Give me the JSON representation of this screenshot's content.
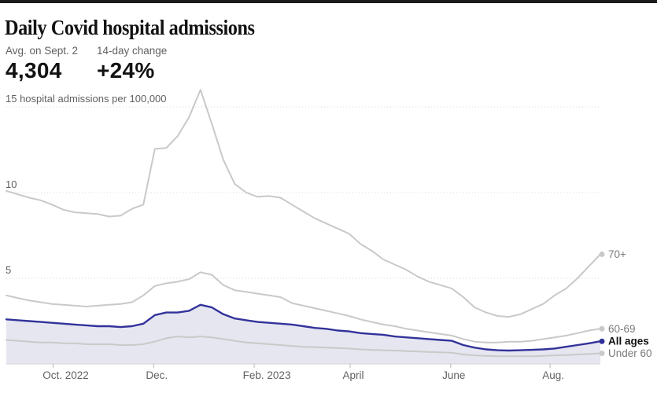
{
  "header": {
    "title": "Daily Covid hospital admissions",
    "stats": [
      {
        "label": "Avg. on Sept. 2",
        "value": "4,304"
      },
      {
        "label": "14-day change",
        "value": "+24%"
      }
    ]
  },
  "chart_data": {
    "type": "line",
    "title": "Daily Covid hospital admissions",
    "unit_note": "hospital admissions per 100,000",
    "grid": "dotted-horizontal",
    "legend_position": "line-end-labels-right",
    "ylim": [
      0,
      16.8
    ],
    "weeks_span": 52,
    "y_gridlines": [
      {
        "value": 15,
        "label": "15 hospital admissions per 100,000"
      },
      {
        "value": 10,
        "label": "10"
      },
      {
        "value": 5,
        "label": "5"
      }
    ],
    "x_ticks": [
      {
        "label": "Oct. 2022",
        "week": 4.1
      },
      {
        "label": "Dec.",
        "week": 12.9
      },
      {
        "label": "Feb. 2023",
        "week": 21.7
      },
      {
        "label": "April",
        "week": 30.1
      },
      {
        "label": "June",
        "week": 38.9
      },
      {
        "label": "Aug.",
        "week": 47.6
      }
    ],
    "colors": {
      "gray_line": "#c9c9c9",
      "accent_line": "#32329b",
      "area_fill": "#e6e6f1",
      "gridline": "#d9d9d9",
      "axis_line": "#d2d2d2",
      "tick": "#b8b8b8"
    },
    "series": [
      {
        "name": "70+",
        "color": "#c9c9c9",
        "width": 2,
        "bold_label": false,
        "values": [
          10.1,
          9.9,
          9.7,
          9.55,
          9.3,
          9.0,
          8.85,
          8.8,
          8.75,
          8.6,
          8.65,
          9.05,
          9.3,
          12.55,
          12.6,
          13.3,
          14.4,
          16.0,
          14.0,
          11.9,
          10.5,
          10.0,
          9.75,
          9.8,
          9.7,
          9.3,
          8.9,
          8.5,
          8.2,
          7.9,
          7.6,
          7.0,
          6.6,
          6.1,
          5.8,
          5.5,
          5.1,
          4.8,
          4.6,
          4.4,
          3.9,
          3.3,
          3.0,
          2.8,
          2.75,
          2.9,
          3.2,
          3.5,
          4.0,
          4.4,
          5.0,
          5.7,
          6.4
        ]
      },
      {
        "name": "60-69",
        "color": "#c9c9c9",
        "width": 2,
        "bold_label": false,
        "values": [
          4.0,
          3.85,
          3.7,
          3.6,
          3.5,
          3.45,
          3.4,
          3.35,
          3.4,
          3.45,
          3.5,
          3.6,
          4.0,
          4.55,
          4.7,
          4.8,
          4.95,
          5.35,
          5.2,
          4.6,
          4.3,
          4.2,
          4.1,
          4.0,
          3.9,
          3.55,
          3.4,
          3.25,
          3.1,
          2.95,
          2.8,
          2.6,
          2.45,
          2.3,
          2.2,
          2.05,
          1.95,
          1.85,
          1.75,
          1.65,
          1.45,
          1.3,
          1.25,
          1.25,
          1.3,
          1.3,
          1.35,
          1.45,
          1.55,
          1.65,
          1.8,
          1.95,
          2.05
        ]
      },
      {
        "name": "Under 60",
        "color": "#c9c9c9",
        "width": 2,
        "bold_label": false,
        "values": [
          1.4,
          1.35,
          1.3,
          1.25,
          1.25,
          1.2,
          1.2,
          1.15,
          1.15,
          1.15,
          1.1,
          1.1,
          1.15,
          1.3,
          1.5,
          1.6,
          1.55,
          1.6,
          1.55,
          1.45,
          1.35,
          1.25,
          1.2,
          1.15,
          1.1,
          1.05,
          1.0,
          0.98,
          0.95,
          0.92,
          0.9,
          0.85,
          0.82,
          0.8,
          0.78,
          0.75,
          0.72,
          0.7,
          0.68,
          0.65,
          0.55,
          0.5,
          0.47,
          0.45,
          0.45,
          0.45,
          0.45,
          0.47,
          0.5,
          0.52,
          0.55,
          0.58,
          0.62
        ]
      },
      {
        "name": "All ages",
        "color": "#32329b",
        "width": 2.4,
        "bold_label": true,
        "area_fill": "#e6e6f1",
        "values": [
          2.6,
          2.55,
          2.5,
          2.45,
          2.4,
          2.35,
          2.3,
          2.25,
          2.2,
          2.2,
          2.15,
          2.2,
          2.35,
          2.85,
          3.0,
          3.0,
          3.1,
          3.45,
          3.3,
          2.9,
          2.65,
          2.55,
          2.45,
          2.4,
          2.35,
          2.3,
          2.2,
          2.1,
          2.05,
          1.95,
          1.9,
          1.8,
          1.75,
          1.7,
          1.6,
          1.55,
          1.5,
          1.45,
          1.4,
          1.35,
          1.1,
          0.95,
          0.85,
          0.8,
          0.78,
          0.8,
          0.82,
          0.85,
          0.9,
          1.0,
          1.1,
          1.2,
          1.32
        ]
      }
    ]
  }
}
